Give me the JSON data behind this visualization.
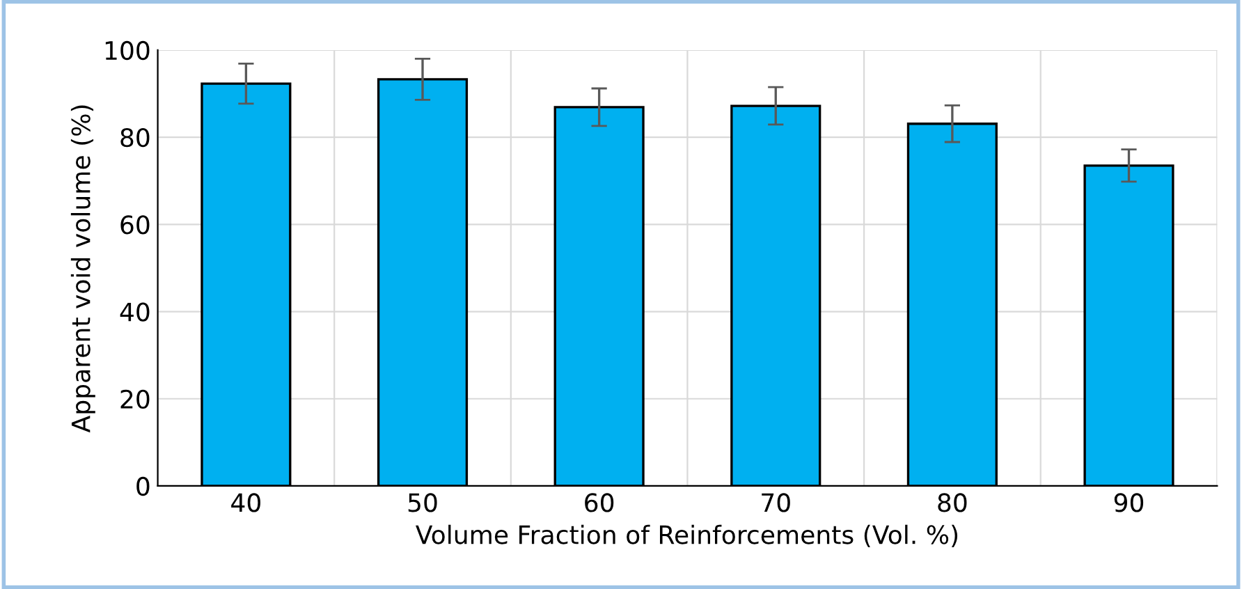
{
  "chart_data": {
    "type": "bar",
    "xlabel": "Volume Fraction of Reinforcements (Vol. %)",
    "ylabel": "Apparent void volume (%)",
    "categories": [
      "40",
      "50",
      "60",
      "70",
      "80",
      "90"
    ],
    "values": [
      92.3,
      93.3,
      86.9,
      87.2,
      83.1,
      73.5
    ],
    "errors": [
      4.6,
      4.7,
      4.3,
      4.3,
      4.2,
      3.7
    ],
    "color": "#00b0f0",
    "ylim": [
      0,
      100
    ],
    "yticks": [
      0,
      20,
      40,
      60,
      80,
      100
    ],
    "grid": true
  }
}
